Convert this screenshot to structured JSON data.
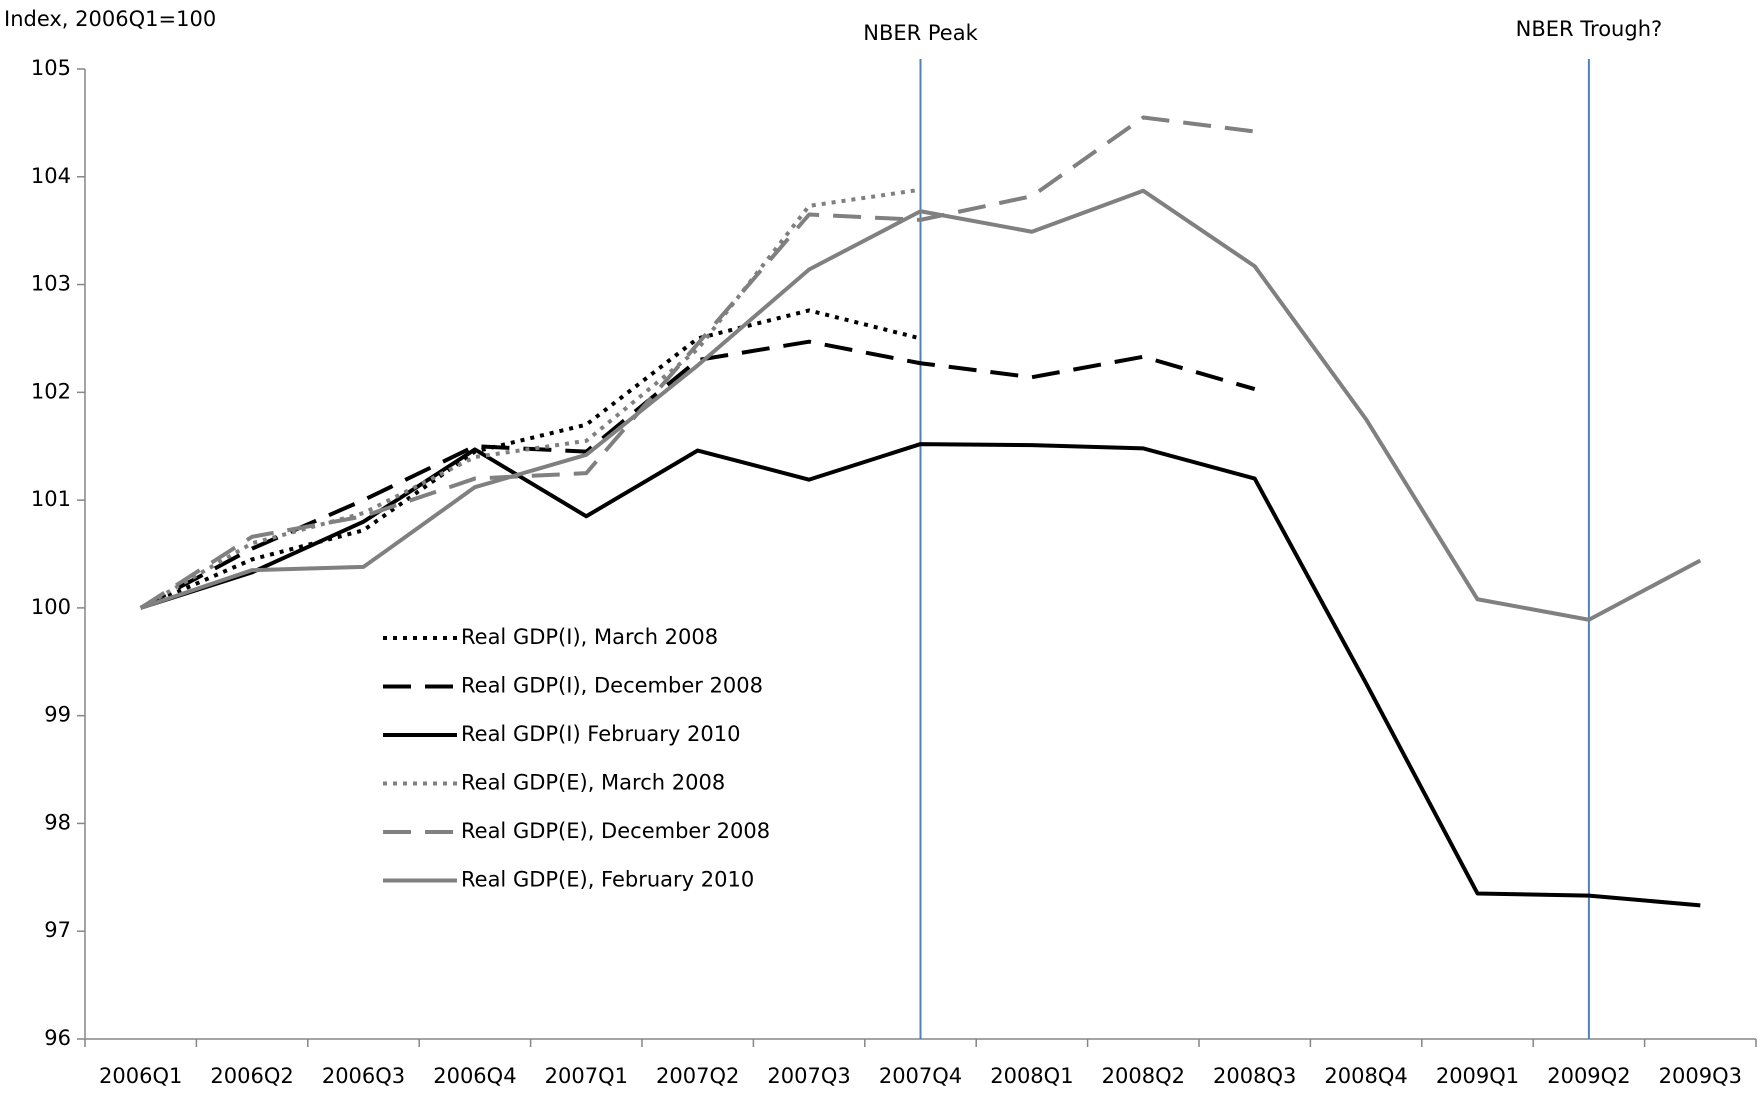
{
  "chart_data": {
    "type": "line",
    "y_label": "Index, 2006Q1=100",
    "categories": [
      "2006Q1",
      "2006Q2",
      "2006Q3",
      "2006Q4",
      "2007Q1",
      "2007Q2",
      "2007Q3",
      "2007Q4",
      "2008Q1",
      "2008Q2",
      "2008Q3",
      "2008Q4",
      "2009Q1",
      "2009Q2",
      "2009Q3"
    ],
    "series": [
      {
        "name": "Real GDP(I), March 2008",
        "color": "#000000",
        "dash": "dotted",
        "values": [
          100,
          100.45,
          100.72,
          101.45,
          101.7,
          102.5,
          102.76,
          102.5,
          null,
          null,
          null,
          null,
          null,
          null,
          null
        ]
      },
      {
        "name": "Real GDP(I), December 2008",
        "color": "#000000",
        "dash": "dashed",
        "values": [
          100,
          100.55,
          101.0,
          101.5,
          101.45,
          102.3,
          102.47,
          102.27,
          102.14,
          102.33,
          102.03,
          null,
          null,
          null,
          null
        ]
      },
      {
        "name": "Real GDP(I) February 2010",
        "color": "#000000",
        "dash": "solid",
        "values": [
          100,
          100.33,
          100.8,
          101.47,
          100.85,
          101.46,
          101.19,
          101.52,
          101.51,
          101.48,
          101.2,
          99.3,
          97.35,
          97.33,
          97.24
        ]
      },
      {
        "name": "Real GDP(E), March 2008",
        "color": "#808080",
        "dash": "dotted",
        "values": [
          100,
          100.6,
          100.88,
          101.4,
          101.55,
          102.4,
          103.73,
          103.88,
          null,
          null,
          null,
          null,
          null,
          null,
          null
        ]
      },
      {
        "name": "Real GDP(E), December 2008",
        "color": "#808080",
        "dash": "dashed",
        "values": [
          100,
          100.66,
          100.85,
          101.2,
          101.25,
          102.45,
          103.65,
          103.6,
          103.82,
          104.55,
          104.42,
          null,
          null,
          null,
          null
        ]
      },
      {
        "name": "Real GDP(E), February 2010",
        "color": "#808080",
        "dash": "solid",
        "values": [
          100,
          100.35,
          100.38,
          101.12,
          101.42,
          102.25,
          103.14,
          103.68,
          103.49,
          103.87,
          103.17,
          101.75,
          100.08,
          99.89,
          100.44
        ]
      }
    ],
    "annotations": [
      {
        "label": "NBER Peak",
        "x": "2007Q4",
        "color": "#4f81bd"
      },
      {
        "label": "NBER Trough?",
        "x": "2009Q2",
        "color": "#4f81bd"
      }
    ],
    "ylim": [
      96,
      105
    ],
    "yticks": [
      96,
      97,
      98,
      99,
      100,
      101,
      102,
      103,
      104,
      105
    ],
    "grid": false,
    "legend": "left"
  }
}
